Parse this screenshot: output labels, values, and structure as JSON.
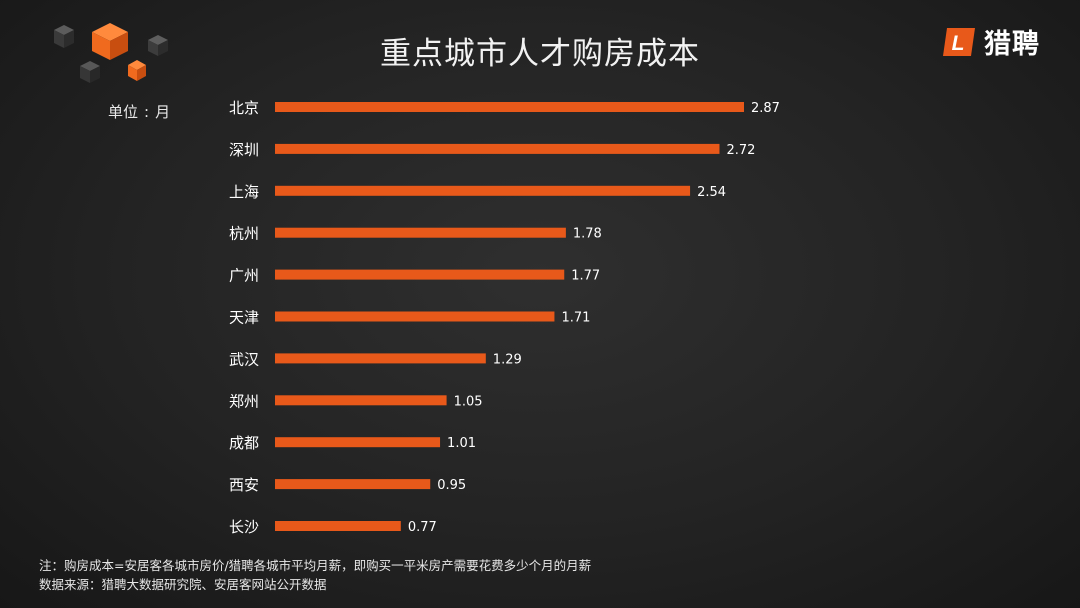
{
  "title": "重点城市人才购房成本",
  "brand": {
    "name": "猎聘",
    "mark_letter": "L",
    "color": "#e8591a"
  },
  "unit": {
    "label": "单位",
    "sep": ":",
    "value": "月"
  },
  "notes": {
    "definition": "注：购房成本=安居客各城市房价/猎聘各城市平均月薪，即购买一平米房产需要花费多少个月的月薪",
    "source": "数据来源：猎聘大数据研究院、安居客网站公开数据"
  },
  "colors": {
    "bar": "#e8591a",
    "background": "#262626",
    "text": "#ffffff"
  },
  "chart_data": {
    "type": "bar",
    "orientation": "horizontal",
    "title": "重点城市人才购房成本",
    "unit": "月",
    "categories": [
      "北京",
      "深圳",
      "上海",
      "杭州",
      "广州",
      "天津",
      "武汉",
      "郑州",
      "成都",
      "西安",
      "长沙"
    ],
    "values": [
      2.87,
      2.72,
      2.54,
      1.78,
      1.77,
      1.71,
      1.29,
      1.05,
      1.01,
      0.95,
      0.77
    ],
    "data_labels": [
      "2.87",
      "2.72",
      "2.54",
      "1.78",
      "1.77",
      "1.71",
      "1.29",
      "1.05",
      "1.01",
      "0.95",
      "0.77"
    ],
    "xlim": [
      0,
      2.87
    ],
    "grid": false,
    "legend": "none"
  }
}
